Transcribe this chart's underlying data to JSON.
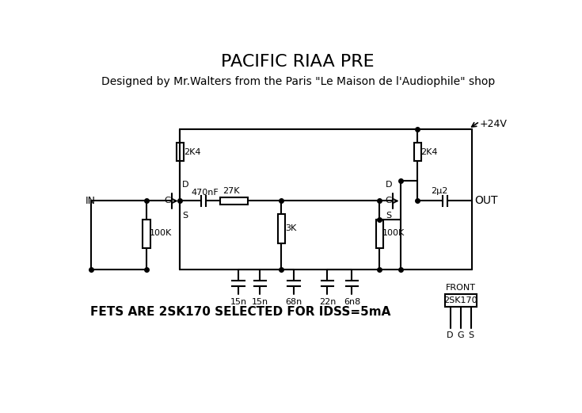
{
  "title": "PACIFIC RIAA PRE",
  "subtitle": "Designed by Mr.Walters from the Paris \"Le Maison de l'Audiophile\" shop",
  "bg_color": "#ffffff",
  "figsize": [
    7.35,
    5.21
  ],
  "dpi": 100,
  "cap_labels": [
    "15n",
    "15n",
    "68n",
    "22n",
    "6n8"
  ],
  "bottom_text": "FETS ARE 2SK170 SELECTED FOR IDSS=5mA",
  "power_label": "+24V",
  "out_label": "OUT",
  "in_label": "IN",
  "front_label": "FRONT",
  "fet_label": "2SK170"
}
